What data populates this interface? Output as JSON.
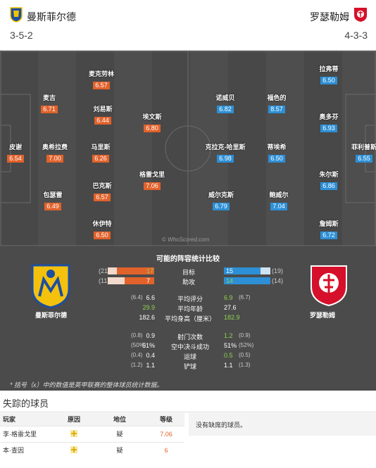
{
  "header": {
    "home": {
      "name": "曼斯菲尔德",
      "formation": "3-5-2"
    },
    "away": {
      "name": "罗瑟勒姆",
      "formation": "4-3-3"
    }
  },
  "pitch": {
    "watermark": "© WhoScored.com",
    "home_players": [
      {
        "name": "皮谢",
        "rating": "6.54"
      },
      {
        "name": "奥希拉费",
        "rating": "7.00"
      },
      {
        "name": "包瑟雷",
        "rating": "6.49"
      },
      {
        "name": "麦吉",
        "rating": "6.71"
      },
      {
        "name": "麦克劳林",
        "rating": "6.57"
      },
      {
        "name": "刘易斯",
        "rating": "6.44"
      },
      {
        "name": "马里斯",
        "rating": "6.26"
      },
      {
        "name": "巴克斯",
        "rating": "6.57"
      },
      {
        "name": "休伊特",
        "rating": "6.50"
      },
      {
        "name": "埃文斯",
        "rating": "6.80"
      },
      {
        "name": "格雷戈里",
        "rating": "7.06"
      }
    ],
    "away_players": [
      {
        "name": "诺威贝",
        "rating": "6.82"
      },
      {
        "name": "克拉克-哈里斯",
        "rating": "6.98"
      },
      {
        "name": "威尔克斯",
        "rating": "6.79"
      },
      {
        "name": "福色的",
        "rating": "8.57"
      },
      {
        "name": "蒂埃希",
        "rating": "6.50"
      },
      {
        "name": "鲍威尔",
        "rating": "7.04"
      },
      {
        "name": "拉弗蒂",
        "rating": "6.50"
      },
      {
        "name": "奥多芬",
        "rating": "6.93"
      },
      {
        "name": "朱尔斯",
        "rating": "6.86"
      },
      {
        "name": "詹姆斯",
        "rating": "6.72"
      },
      {
        "name": "菲利普斯",
        "rating": "6.55"
      }
    ]
  },
  "stats": {
    "title": "可能的阵容统计比较",
    "home_label": "曼斯菲尔德",
    "away_label": "罗瑟勒姆",
    "bar_rows": [
      {
        "label": "目标",
        "home": "17",
        "home_avg": "(21)",
        "away": "15",
        "away_avg": "(19)",
        "home_frac": 0.81,
        "away_frac": 0.79
      },
      {
        "label": "助攻",
        "home": "7",
        "home_avg": "(11)",
        "away": "14",
        "away_avg": "(14)",
        "home_frac": 0.64,
        "away_frac": 1.0
      }
    ],
    "rows": [
      {
        "label": "平均评分",
        "home_avg": "(6.4)",
        "home": "6.6",
        "away": "6.9",
        "away_avg": "(6.7)",
        "home_color": "#ffffff",
        "away_color": "#8fd14f"
      },
      {
        "label": "平均年龄",
        "home_avg": "",
        "home": "29.9",
        "away": "27.6",
        "away_avg": "",
        "home_color": "#8fd14f",
        "away_color": "#ffffff"
      },
      {
        "label": "平均身高（厘米）",
        "home_avg": "",
        "home": "182.6",
        "away": "182.9",
        "away_avg": "",
        "home_color": "#ffffff",
        "away_color": "#8fd14f"
      },
      {
        "label": "射门次数",
        "home_avg": "(0.8)",
        "home": "0.9",
        "away": "1.2",
        "away_avg": "(0.9)",
        "home_color": "#ffffff",
        "away_color": "#8fd14f"
      },
      {
        "label": "空中决斗成功",
        "home_avg": "(50%)",
        "home": "51%",
        "away": "51%",
        "away_avg": "(52%)",
        "home_color": "#ffffff",
        "away_color": "#ffffff"
      },
      {
        "label": "运球",
        "home_avg": "(0.4)",
        "home": "0.4",
        "away": "0.5",
        "away_avg": "(0.5)",
        "home_color": "#ffffff",
        "away_color": "#8fd14f"
      },
      {
        "label": "铲球",
        "home_avg": "(1.2)",
        "home": "1.1",
        "away": "1.1",
        "away_avg": "(1.3)",
        "home_color": "#ffffff",
        "away_color": "#ffffff"
      }
    ],
    "footnote": "* 括号（x）中的数值是英甲联赛的整体球员统计数据。"
  },
  "missing": {
    "title": "失踪的球员",
    "columns": [
      "玩家",
      "原因",
      "地位",
      "等级"
    ],
    "rows": [
      {
        "player": "李·格雷戈里",
        "status": "疑",
        "rating": "7.06"
      },
      {
        "player": "本·查因",
        "status": "疑",
        "rating": "6"
      }
    ],
    "away_text": "没有缺席的球员。"
  },
  "colors": {
    "home": "#e2622b",
    "away": "#2d8fd5",
    "better": "#8fd14f",
    "pitch": "#4a4a4a"
  }
}
